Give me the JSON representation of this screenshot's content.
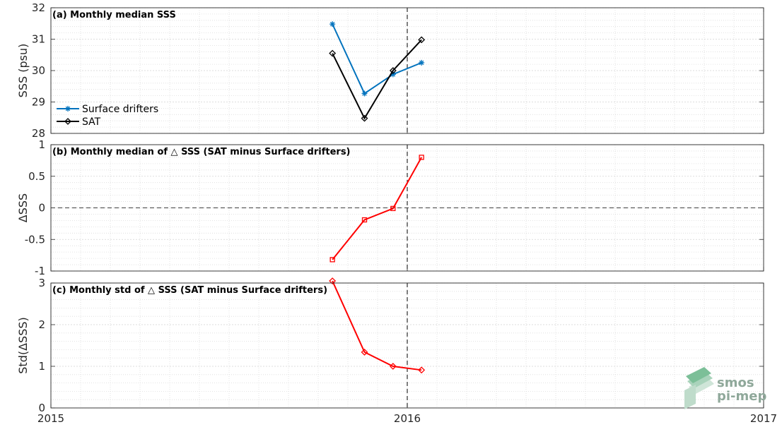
{
  "chart_data": [
    {
      "type": "line",
      "title": "(a) Monthly median SSS",
      "xlabel": "",
      "ylabel": "SSS (psu)",
      "xlim": [
        2015,
        2017
      ],
      "ylim": [
        28,
        32
      ],
      "yticks": [
        "28",
        "29",
        "30",
        "31",
        "32"
      ],
      "x": [
        2015.79,
        2015.88,
        2015.96,
        2016.04
      ],
      "series": [
        {
          "name": "Surface drifters",
          "color": "#0072BD",
          "marker": "asterisk",
          "values": [
            31.48,
            29.27,
            29.88,
            30.25
          ]
        },
        {
          "name": "SAT",
          "color": "#000000",
          "marker": "diamond",
          "values": [
            30.55,
            28.48,
            30.0,
            30.98
          ]
        }
      ],
      "vline_x": 2016,
      "grid": true,
      "legend_position": "lower-left"
    },
    {
      "type": "line",
      "title": "(b) Monthly median of △ SSS (SAT minus Surface drifters)",
      "xlabel": "",
      "ylabel": "ΔSSS",
      "xlim": [
        2015,
        2017
      ],
      "ylim": [
        -1,
        1
      ],
      "yticks": [
        "-1",
        "-0.5",
        "0",
        "0.5",
        "1"
      ],
      "x": [
        2015.79,
        2015.88,
        2015.96,
        2016.04
      ],
      "series": [
        {
          "color": "#FF0000",
          "marker": "square",
          "values": [
            -0.82,
            -0.19,
            -0.01,
            0.8
          ]
        }
      ],
      "hline_y": 0,
      "vline_x": 2016,
      "grid": true
    },
    {
      "type": "line",
      "title": "(c) Monthly std of △ SSS (SAT minus Surface drifters)",
      "xlabel": "",
      "ylabel": "Std(ΔSSS)",
      "xlim": [
        2015,
        2017
      ],
      "ylim": [
        0,
        3
      ],
      "yticks": [
        "0",
        "1",
        "2",
        "3"
      ],
      "xticks": [
        "2015",
        "2016",
        "2017"
      ],
      "x": [
        2015.79,
        2015.88,
        2015.96,
        2016.04
      ],
      "series": [
        {
          "color": "#FF0000",
          "marker": "diamond",
          "values": [
            3.05,
            1.34,
            1.0,
            0.91
          ]
        }
      ],
      "vline_x": 2016,
      "grid": true
    }
  ],
  "logo": {
    "line1": "smos",
    "line2": "pi-mep"
  }
}
